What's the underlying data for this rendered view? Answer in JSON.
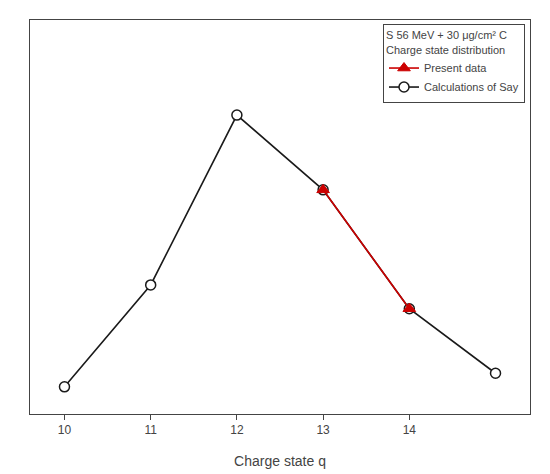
{
  "chart_data": {
    "type": "line",
    "xlabel": "Charge state q",
    "legend_title": [
      "S 56 MeV + 30 μg/cm² C",
      "Charge state distribution"
    ],
    "series": [
      {
        "name": "Present data",
        "color": "#cc0000",
        "marker": "triangle",
        "x": [
          13,
          14
        ],
        "values": [
          0.33,
          0.155
        ]
      },
      {
        "name": "Calculations of Say",
        "color": "#1a1a1a",
        "marker": "open_circle",
        "x": [
          10,
          11,
          12,
          13,
          14,
          15
        ],
        "values": [
          0.04,
          0.19,
          0.44,
          0.33,
          0.155,
          0.06
        ]
      }
    ],
    "xlim": [
      9.6,
      15.4
    ],
    "ylim": [
      0.0,
      0.58
    ],
    "xticks": [
      10,
      11,
      12,
      13,
      14
    ],
    "tick_labels": "x",
    "grid": false,
    "legend": "upper right"
  }
}
